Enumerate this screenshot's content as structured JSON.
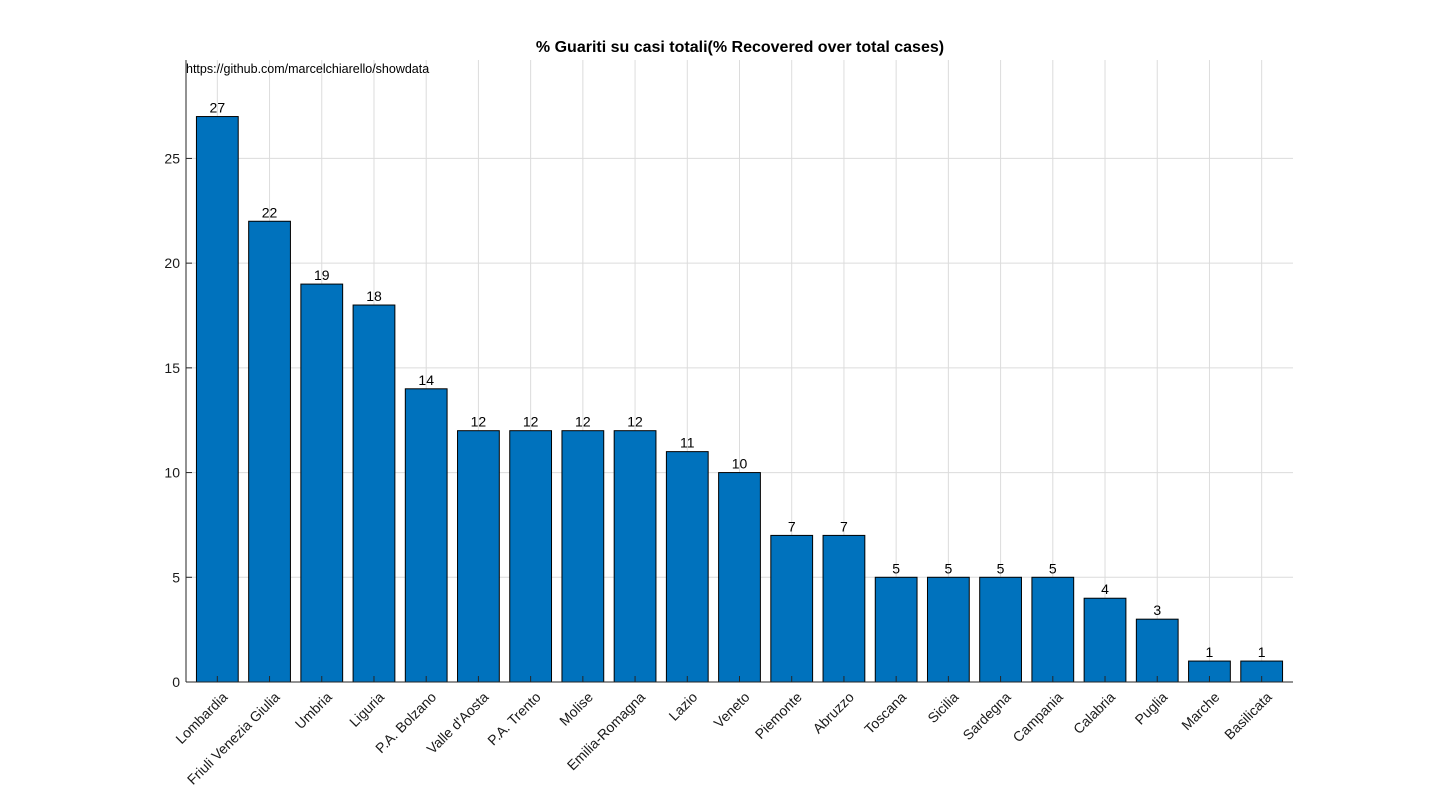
{
  "chart_data": {
    "type": "bar",
    "title": "% Guariti su casi totali(% Recovered over total cases)",
    "annotation": "https://github.com/marcelchiarello/showdata",
    "categories": [
      "Lombardia",
      "Friuli Venezia Giulia",
      "Umbria",
      "Liguria",
      "P.A. Bolzano",
      "Valle d'Aosta",
      "P.A. Trento",
      "Molise",
      "Emilia-Romagna",
      "Lazio",
      "Veneto",
      "Piemonte",
      "Abruzzo",
      "Toscana",
      "Sicilia",
      "Sardegna",
      "Campania",
      "Calabria",
      "Puglia",
      "Marche",
      "Basilicata"
    ],
    "values": [
      27,
      22,
      19,
      18,
      14,
      12,
      12,
      12,
      12,
      11,
      10,
      7,
      7,
      5,
      5,
      5,
      5,
      4,
      3,
      1,
      1
    ],
    "data_labels": [
      "27",
      "22",
      "19",
      "18",
      "14",
      "12",
      "12",
      "12",
      "12",
      "11",
      "10",
      "7",
      "7",
      "5",
      "5",
      "5",
      "5",
      "4",
      "3",
      "1",
      "1"
    ],
    "yticks": [
      0,
      5,
      10,
      15,
      20,
      25
    ],
    "ytick_labels": [
      "0",
      "5",
      "10",
      "15",
      "20",
      "25"
    ],
    "ylim": [
      0,
      29.7
    ],
    "xlabel": "",
    "ylabel": "",
    "grid": true,
    "bar_color": "#0072bd",
    "edge_color": "#000000"
  }
}
